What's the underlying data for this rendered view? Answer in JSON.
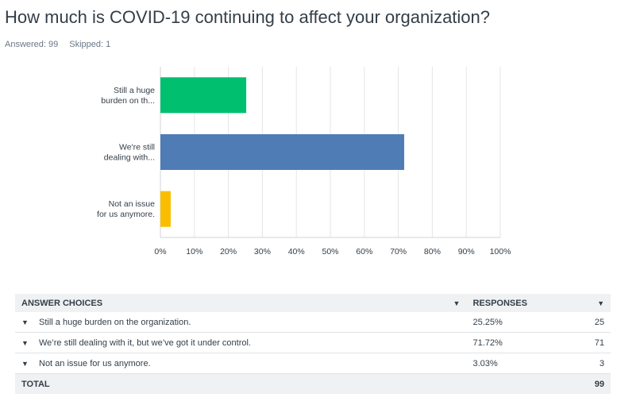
{
  "question": {
    "title": "How much is COVID-19 continuing to affect your organization?",
    "answered_label": "Answered: 99",
    "skipped_label": "Skipped: 1"
  },
  "chart_data": {
    "type": "bar",
    "orientation": "horizontal",
    "categories": [
      [
        "Still a huge",
        "burden on th..."
      ],
      [
        "We're still",
        "dealing with..."
      ],
      [
        "Not an issue",
        "for us anymore."
      ]
    ],
    "values": [
      25.25,
      71.72,
      3.03
    ],
    "colors": [
      "#00bf6f",
      "#507cb6",
      "#f9be00"
    ],
    "xlim": [
      0,
      100
    ],
    "x_ticks": [
      "0%",
      "10%",
      "20%",
      "30%",
      "40%",
      "50%",
      "60%",
      "70%",
      "80%",
      "90%",
      "100%"
    ],
    "grid": true
  },
  "table": {
    "header": {
      "choices": "ANSWER CHOICES",
      "responses": "RESPONSES"
    },
    "rows": [
      {
        "choice": "Still a huge burden on the organization.",
        "percent": "25.25%",
        "count": "25"
      },
      {
        "choice": "We’re still dealing with it, but we’ve got it under control.",
        "percent": "71.72%",
        "count": "71"
      },
      {
        "choice": "Not an issue for us anymore.",
        "percent": "3.03%",
        "count": "3"
      }
    ],
    "total_label": "TOTAL",
    "total_count": "99"
  }
}
